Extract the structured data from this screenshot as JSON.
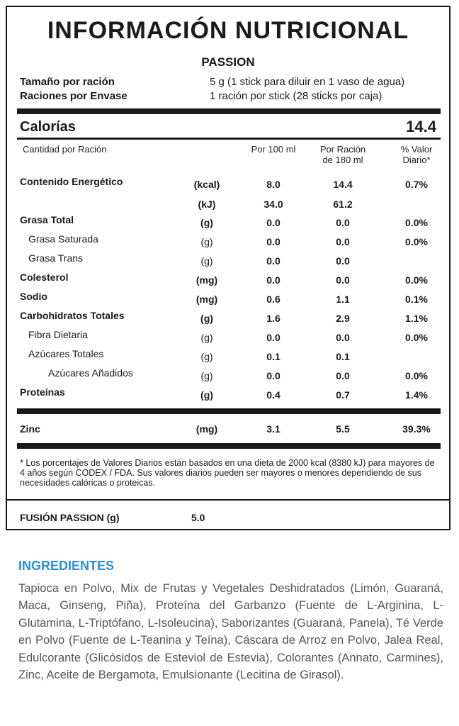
{
  "label": {
    "title": "INFORMACIÓN NUTRICIONAL",
    "product": "PASSION",
    "serving_size_label": "Tamaño por ración",
    "serving_size_value": "5 g (1 stick para diluir en 1 vaso de agua)",
    "servings_label": "Raciones por Envase",
    "servings_value": "1 ración por stick (28 sticks por caja)",
    "calories_label": "Calorías",
    "calories_value": "14.4",
    "columns": {
      "amount": "Cantidad por Ración",
      "per100_line1": "Por 100 ml",
      "perserving_line1": "Por Ración",
      "perserving_line2": "de 180 ml",
      "dv_line1": "% Valor",
      "dv_line2": "Diario*"
    },
    "rows": [
      {
        "name": "Contenido Energético",
        "unit": "(kcal)",
        "per100": "8.0",
        "serving": "14.4",
        "dv": "0.7%"
      },
      {
        "name": "",
        "unit": "(kJ)",
        "per100": "34.0",
        "serving": "61.2",
        "dv": ""
      },
      {
        "name": "Grasa Total",
        "unit": "(g)",
        "per100": "0.0",
        "serving": "0.0",
        "dv": "0.0%"
      },
      {
        "name": "Grasa Saturada",
        "unit": "(g)",
        "per100": "0.0",
        "serving": "0.0",
        "dv": "0.0%"
      },
      {
        "name": "Grasa Trans",
        "unit": "(g)",
        "per100": "0.0",
        "serving": "0.0",
        "dv": ""
      },
      {
        "name": "Colesterol",
        "unit": "(mg)",
        "per100": "0.0",
        "serving": "0.0",
        "dv": "0.0%"
      },
      {
        "name": "Sodio",
        "unit": "(mg)",
        "per100": "0.6",
        "serving": "1.1",
        "dv": "0.1%"
      },
      {
        "name": "Carbohidratos Totales",
        "unit": "(g)",
        "per100": "1.6",
        "serving": "2.9",
        "dv": "1.1%"
      },
      {
        "name": "Fibra Dietaria",
        "unit": "(g)",
        "per100": "0.0",
        "serving": "0.0",
        "dv": "0.0%"
      },
      {
        "name": "Azúcares Totales",
        "unit": "(g)",
        "per100": "0.1",
        "serving": "0.1",
        "dv": ""
      },
      {
        "name": "Azúcares Añadidos",
        "unit": "(g)",
        "per100": "0.0",
        "serving": "0.0",
        "dv": "0.0%"
      },
      {
        "name": "Proteínas",
        "unit": "(g)",
        "per100": "0.4",
        "serving": "0.7",
        "dv": "1.4%"
      }
    ],
    "zinc": {
      "name": "Zinc",
      "unit": "(mg)",
      "per100": "3.1",
      "serving": "5.5",
      "dv": "39.3%"
    },
    "footnote": "* Los porcentajes de Valores Diarios están basados en una dieta de 2000 kcal (8380 kJ) para mayores de 4 años según CODEX / FDA. Sus valores diarios pueden ser mayores o menores dependiendo de sus necesidades calóricas o proteicas.",
    "fusion_label": "FUSIÓN PASSION (g)",
    "fusion_value": "5.0"
  },
  "ingredients": {
    "title": "INGREDIENTES",
    "text": "Tapioca en Polvo, Mix de Frutas y Vegetales Deshidratados (Limón, Guaraná, Maca, Ginseng, Piña), Proteína del Garbanzo (Fuente de L-Arginina, L-Glutamina, L-Triptófano, L-Isoleucina), Saborizantes (Guaraná, Panela), Té Verde en Polvo (Fuente de L-Teanina y Teína), Cáscara de Arroz en Polvo, Jalea Real, Edulcorante (Glicósidos de Esteviol de Estevia), Colorantes (Annato, Carmines), Zinc, Aceite de Bergamota, Emulsionante (Lecitina de Girasol).",
    "accent_color": "#2a8fd6"
  }
}
